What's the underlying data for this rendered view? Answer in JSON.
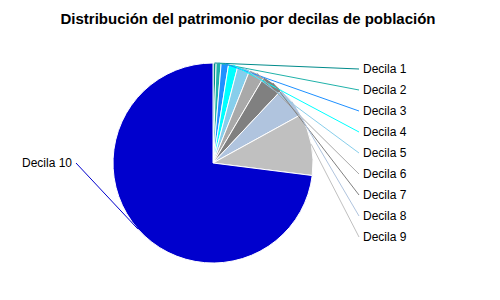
{
  "chart_data": {
    "type": "pie",
    "title": "Distribución del patrimonio por decilas de población",
    "categories": [
      "Decila 1",
      "Decila 2",
      "Decila 3",
      "Decila 4",
      "Decila 5",
      "Decila 6",
      "Decila 7",
      "Decila 8",
      "Decila 9",
      "Decila 10"
    ],
    "values": [
      0.5,
      0.8,
      1.2,
      1.5,
      2.0,
      2.5,
      3.5,
      5.0,
      10.0,
      73.0
    ],
    "colors": [
      "#008B8B",
      "#20B2AA",
      "#1E90FF",
      "#00FFFF",
      "#87CEEB",
      "#A9A9A9",
      "#808080",
      "#B0C4DE",
      "#C0C0C0",
      "#0000CD"
    ]
  }
}
